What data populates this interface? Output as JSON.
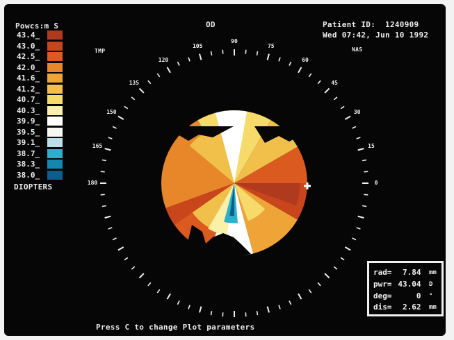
{
  "header": {
    "legend_title": "Powcs\\n S",
    "eye": "OD",
    "patient_id_label": "Patient ID:",
    "patient_id": "1240909",
    "datetime": "Wed 07:42, Jun 10 1992",
    "temporal": "TMP",
    "nasal": "NAS"
  },
  "legend": {
    "units": "DIOPTERS",
    "entries": [
      {
        "value": "43.4",
        "color": "#b03a1e"
      },
      {
        "value": "43.0",
        "color": "#c9451c"
      },
      {
        "value": "42.5",
        "color": "#db5a1f"
      },
      {
        "value": "42.0",
        "color": "#e8862a"
      },
      {
        "value": "41.6",
        "color": "#eea437"
      },
      {
        "value": "41.2",
        "color": "#f1c04a"
      },
      {
        "value": "40.7",
        "color": "#f6da6a"
      },
      {
        "value": "40.3",
        "color": "#faf0a8"
      },
      {
        "value": "39.9",
        "color": "#ffffff"
      },
      {
        "value": "39.5",
        "color": "#f5f7f2"
      },
      {
        "value": "39.1",
        "color": "#b9dfe8"
      },
      {
        "value": "38.7",
        "color": "#2bb0cc"
      },
      {
        "value": "38.3",
        "color": "#1487ae"
      },
      {
        "value": "38.0",
        "color": "#0b5f8a"
      }
    ]
  },
  "angle_labels": [
    "0",
    "15",
    "30",
    "45",
    "60",
    "75",
    "90",
    "105",
    "120",
    "135",
    "150",
    "165",
    "180"
  ],
  "cursor_info": {
    "rad_label": "rad=",
    "rad": "7.84",
    "rad_unit": "mm",
    "pwr_label": "pwr=",
    "pwr": "43.04",
    "pwr_unit": "D",
    "deg_label": "deg=",
    "deg": "0",
    "deg_unit": "°",
    "dis_label": "dis=",
    "dis": "2.62",
    "dis_unit": "mm"
  },
  "footer": {
    "hint": "Press C to change Plot parameters"
  }
}
